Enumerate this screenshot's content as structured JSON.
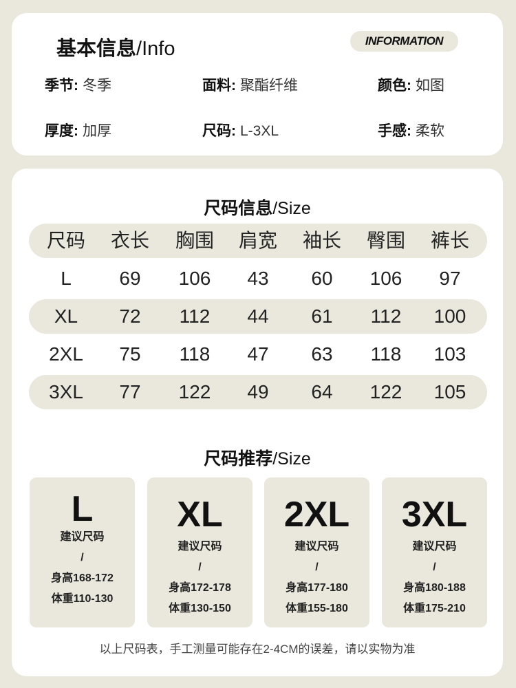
{
  "info": {
    "title_cn": "基本信息",
    "title_en": "/Info",
    "badge": "INFORMATION",
    "attributes": [
      {
        "label": "季节:",
        "value": "冬季"
      },
      {
        "label": "面料:",
        "value": "聚酯纤维"
      },
      {
        "label": "颜色:",
        "value": "如图"
      },
      {
        "label": "厚度:",
        "value": "加厚"
      },
      {
        "label": "尺码:",
        "value": "L-3XL"
      },
      {
        "label": "手感:",
        "value": "柔软"
      }
    ]
  },
  "size_table": {
    "title_cn": "尺码信息",
    "title_en": "/Size",
    "headers": [
      "尺码",
      "衣长",
      "胸围",
      "肩宽",
      "袖长",
      "臀围",
      "裤长"
    ],
    "rows": [
      [
        "L",
        "69",
        "106",
        "43",
        "60",
        "106",
        "97"
      ],
      [
        "XL",
        "72",
        "112",
        "44",
        "61",
        "112",
        "100"
      ],
      [
        "2XL",
        "75",
        "118",
        "47",
        "63",
        "118",
        "103"
      ],
      [
        "3XL",
        "77",
        "122",
        "49",
        "64",
        "122",
        "105"
      ]
    ]
  },
  "recommend": {
    "title_cn": "尺码推荐",
    "title_en": "/Size",
    "items": [
      {
        "size": "L",
        "label": "建议尺码",
        "sep": "/",
        "height": "身高168-172",
        "weight": "体重110-130"
      },
      {
        "size": "XL",
        "label": "建议尺码",
        "sep": "/",
        "height": "身高172-178",
        "weight": "体重130-150"
      },
      {
        "size": "2XL",
        "label": "建议尺码",
        "sep": "/",
        "height": "身高177-180",
        "weight": "体重155-180"
      },
      {
        "size": "3XL",
        "label": "建议尺码",
        "sep": "/",
        "height": "身高180-188",
        "weight": "体重175-210"
      }
    ]
  },
  "footer": "以上尺码表，手工测量可能存在2-4CM的误差，请以实物为准"
}
